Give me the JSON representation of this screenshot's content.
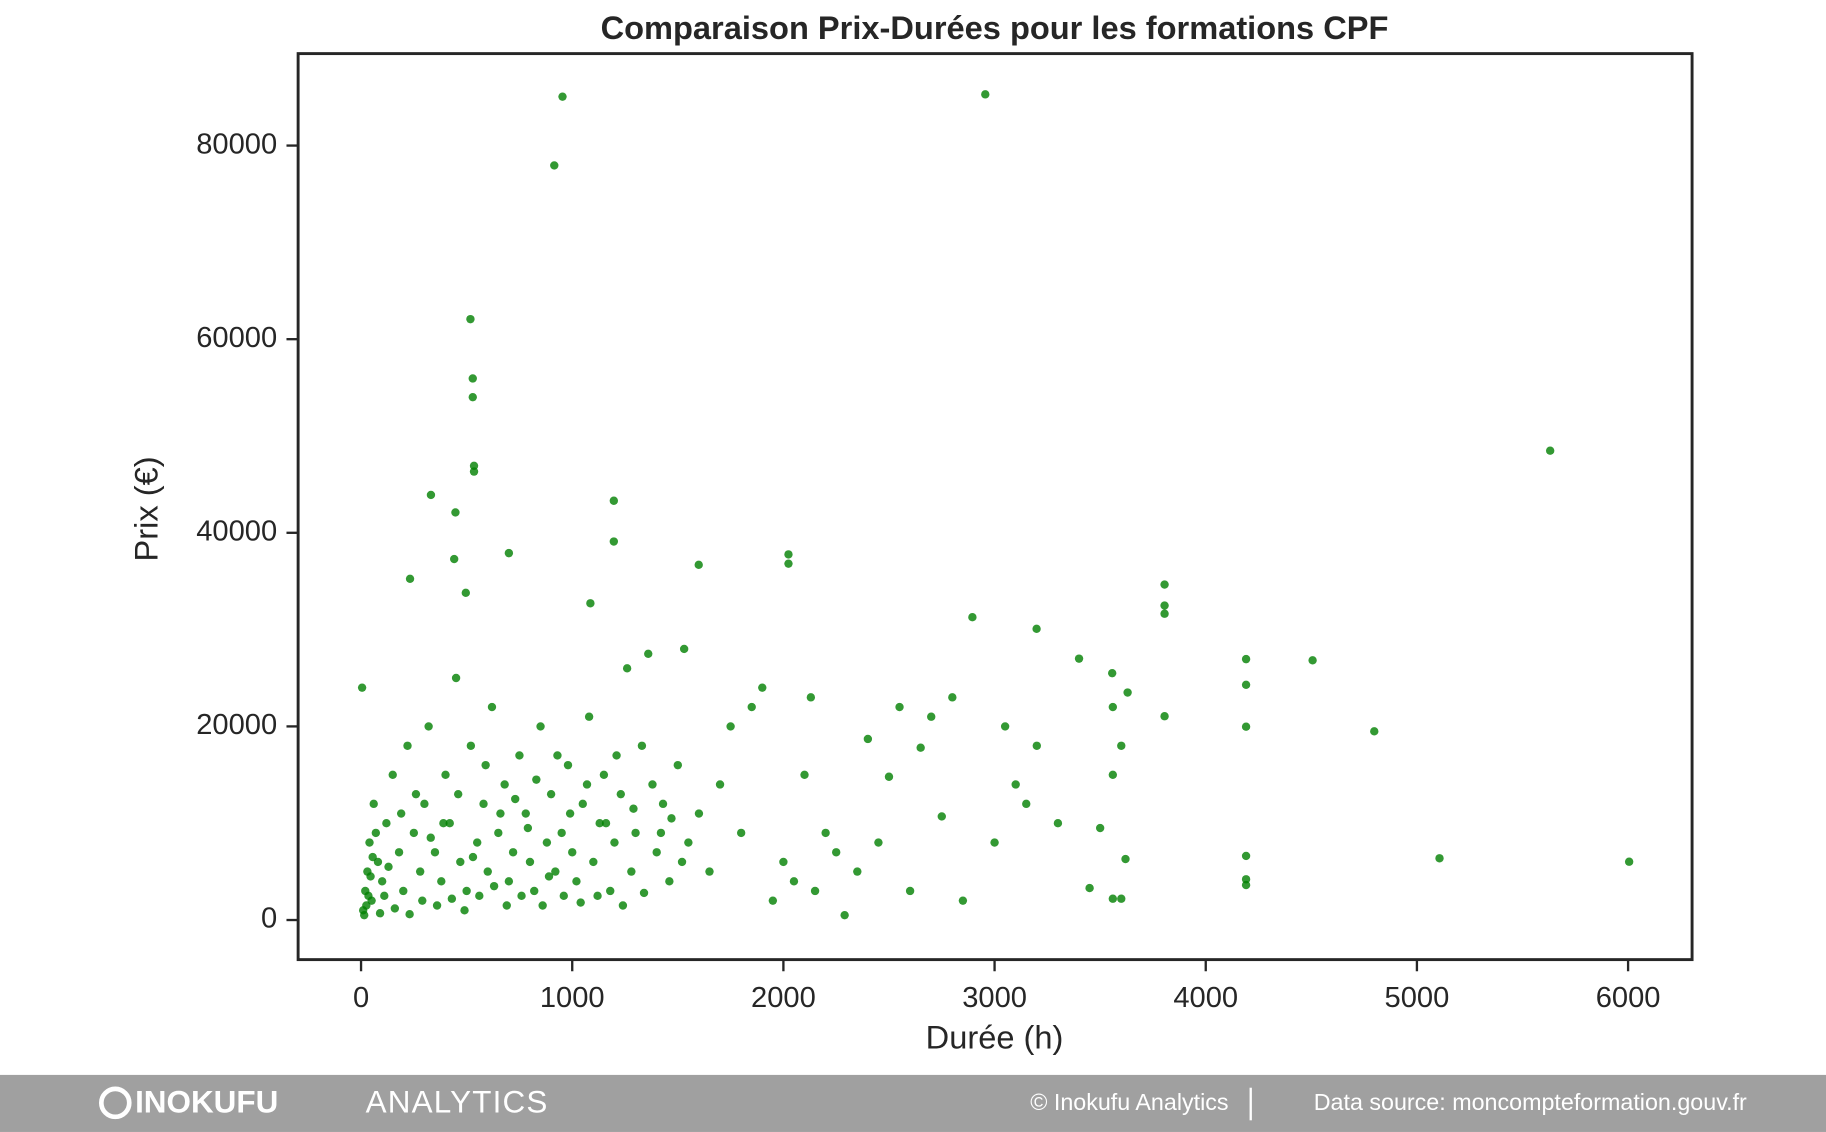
{
  "chart_data": {
    "type": "scatter",
    "title": "Comparaison Prix-Durées pour les formations CPF",
    "x_label": "Durée (h)",
    "y_label": "Prix (€)",
    "color": "#008000",
    "xlim": [
      -298,
      6303
    ],
    "ylim": [
      -4090,
      89500
    ],
    "xticks": [
      0,
      1000,
      2000,
      3000,
      4000,
      5000,
      6000
    ],
    "yticks": [
      0,
      20000,
      40000,
      60000,
      80000
    ],
    "grid": false,
    "x": [
      954,
      2956,
      915,
      518,
      529,
      529,
      535,
      535,
      331,
      447,
      1197,
      1197,
      700,
      441,
      2024,
      2024,
      1599,
      232,
      496,
      1086,
      5631,
      3805,
      3805,
      3805,
      2895,
      3199,
      4191,
      4506,
      4191,
      4191,
      4798,
      3805,
      5107,
      6005,
      4191,
      4191,
      4191,
      3557,
      10,
      20,
      30,
      40,
      50,
      60,
      5,
      80,
      100,
      120,
      150,
      180,
      200,
      220,
      250,
      280,
      300,
      320,
      350,
      380,
      400,
      420,
      450,
      470,
      500,
      520,
      550,
      580,
      600,
      620,
      650,
      680,
      700,
      720,
      750,
      780,
      800,
      820,
      850,
      880,
      900,
      920,
      950,
      980,
      1000,
      1020,
      1050,
      1080,
      1100,
      1130,
      1150,
      1180,
      1200,
      1230,
      1260,
      1280,
      1300,
      1330,
      1360,
      1400,
      1430,
      1460,
      1500,
      1530,
      1550,
      1600,
      1650,
      1700,
      1750,
      1800,
      1850,
      1900,
      1950,
      2000,
      2050,
      2100,
      2130,
      2150,
      2200,
      2250,
      2290,
      2350,
      2400,
      2450,
      2500,
      2550,
      2600,
      2650,
      2700,
      2750,
      2800,
      2850,
      3000,
      3050,
      3100,
      3150,
      3200,
      3300,
      3400,
      3450,
      3500,
      3560,
      3560,
      3560,
      3600,
      3600,
      3620,
      3630,
      15,
      25,
      35,
      45,
      55,
      70,
      90,
      110,
      130,
      160,
      190,
      230,
      260,
      290,
      330,
      360,
      390,
      430,
      460,
      490,
      530,
      560,
      590,
      630,
      660,
      690,
      730,
      760,
      790,
      830,
      860,
      890,
      930,
      960,
      990,
      1040,
      1070,
      1120,
      1160,
      1210,
      1240,
      1290,
      1340,
      1380,
      1420,
      1470,
      1520
    ],
    "values": [
      85050,
      85290,
      77950,
      62070,
      55940,
      54010,
      46920,
      46320,
      43910,
      42100,
      43310,
      39100,
      37900,
      37290,
      37770,
      36810,
      36690,
      35250,
      33800,
      32720,
      48480,
      34650,
      32480,
      31640,
      31280,
      30080,
      26950,
      26830,
      24300,
      19970,
      19490,
      21050,
      6380,
      6020,
      6620,
      4210,
      3610,
      25500,
      1000,
      3000,
      5000,
      8000,
      2000,
      12000,
      24000,
      6000,
      4000,
      10000,
      15000,
      7000,
      3000,
      18000,
      9000,
      5000,
      12000,
      20000,
      7000,
      4000,
      15000,
      10000,
      25000,
      6000,
      3000,
      18000,
      8000,
      12000,
      5000,
      22000,
      9000,
      14000,
      4000,
      7000,
      17000,
      11000,
      6000,
      3000,
      20000,
      8000,
      13000,
      5000,
      9000,
      16000,
      7000,
      4000,
      12000,
      21000,
      6000,
      10000,
      15000,
      3000,
      8000,
      13000,
      26000,
      5000,
      9000,
      18000,
      27500,
      7000,
      12000,
      4000,
      16000,
      28000,
      8000,
      11000,
      5000,
      14000,
      20000,
      9000,
      22000,
      24000,
      2000,
      6000,
      4000,
      15000,
      23000,
      3000,
      9000,
      7000,
      500,
      5000,
      18700,
      8000,
      14800,
      22000,
      3000,
      17800,
      21000,
      10700,
      23000,
      2000,
      8000,
      20000,
      14000,
      12000,
      18000,
      10000,
      27000,
      3300,
      9500,
      2200,
      15000,
      22000,
      2200,
      18000,
      6300,
      23500,
      500,
      1500,
      2500,
      4500,
      6500,
      9000,
      700,
      2500,
      5500,
      1200,
      11000,
      600,
      13000,
      2000,
      8500,
      1500,
      10000,
      2200,
      13000,
      1000,
      6500,
      2500,
      16000,
      3500,
      11000,
      1500,
      12500,
      2500,
      9500,
      14500,
      1500,
      4500,
      17000,
      2500,
      11000,
      1800,
      14000,
      2500,
      10000,
      17000,
      1500,
      11500,
      2800,
      14000,
      9000,
      10500,
      6000
    ]
  },
  "footer": {
    "brand_bold": "INOKUFU",
    "brand_light": "ANALYTICS",
    "copyright": "© Inokufu Analytics",
    "source": "Data source: moncompteformation.gouv.fr"
  }
}
